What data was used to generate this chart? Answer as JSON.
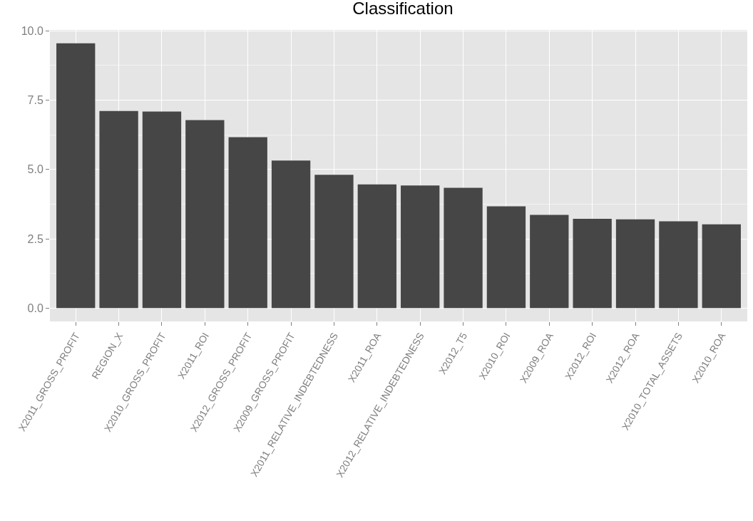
{
  "chart_data": {
    "type": "bar",
    "title": "Classification",
    "categories": [
      "X2011_GROSS_PROFIT",
      "REGION_X",
      "X2010_GROSS_PROFIT",
      "X2011_ROI",
      "X2012_GROSS_PROFIT",
      "X2009_GROSS_PROFIT",
      "X2011_RELATIVE_INDEBTEDNESS",
      "X2011_ROA",
      "X2012_RELATIVE_INDEBTEDNESS",
      "X2012_T5",
      "X2010_ROI",
      "X2009_ROA",
      "X2012_ROI",
      "X2012_ROA",
      "X2010_TOTAL_ASSETS",
      "X2010_ROA"
    ],
    "values": [
      9.55,
      7.11,
      7.09,
      6.78,
      6.16,
      5.32,
      4.81,
      4.46,
      4.42,
      4.34,
      3.67,
      3.36,
      3.22,
      3.2,
      3.13,
      3.02
    ],
    "color": "#464646",
    "ylim": [
      -0.48,
      10.03
    ],
    "yticks": [
      {
        "value": 0,
        "label": "0.0"
      },
      {
        "value": 2.5,
        "label": "2.5"
      },
      {
        "value": 5,
        "label": "5.0"
      },
      {
        "value": 7.5,
        "label": "7.5"
      },
      {
        "value": 10,
        "label": "10.0"
      }
    ],
    "grid": true
  }
}
